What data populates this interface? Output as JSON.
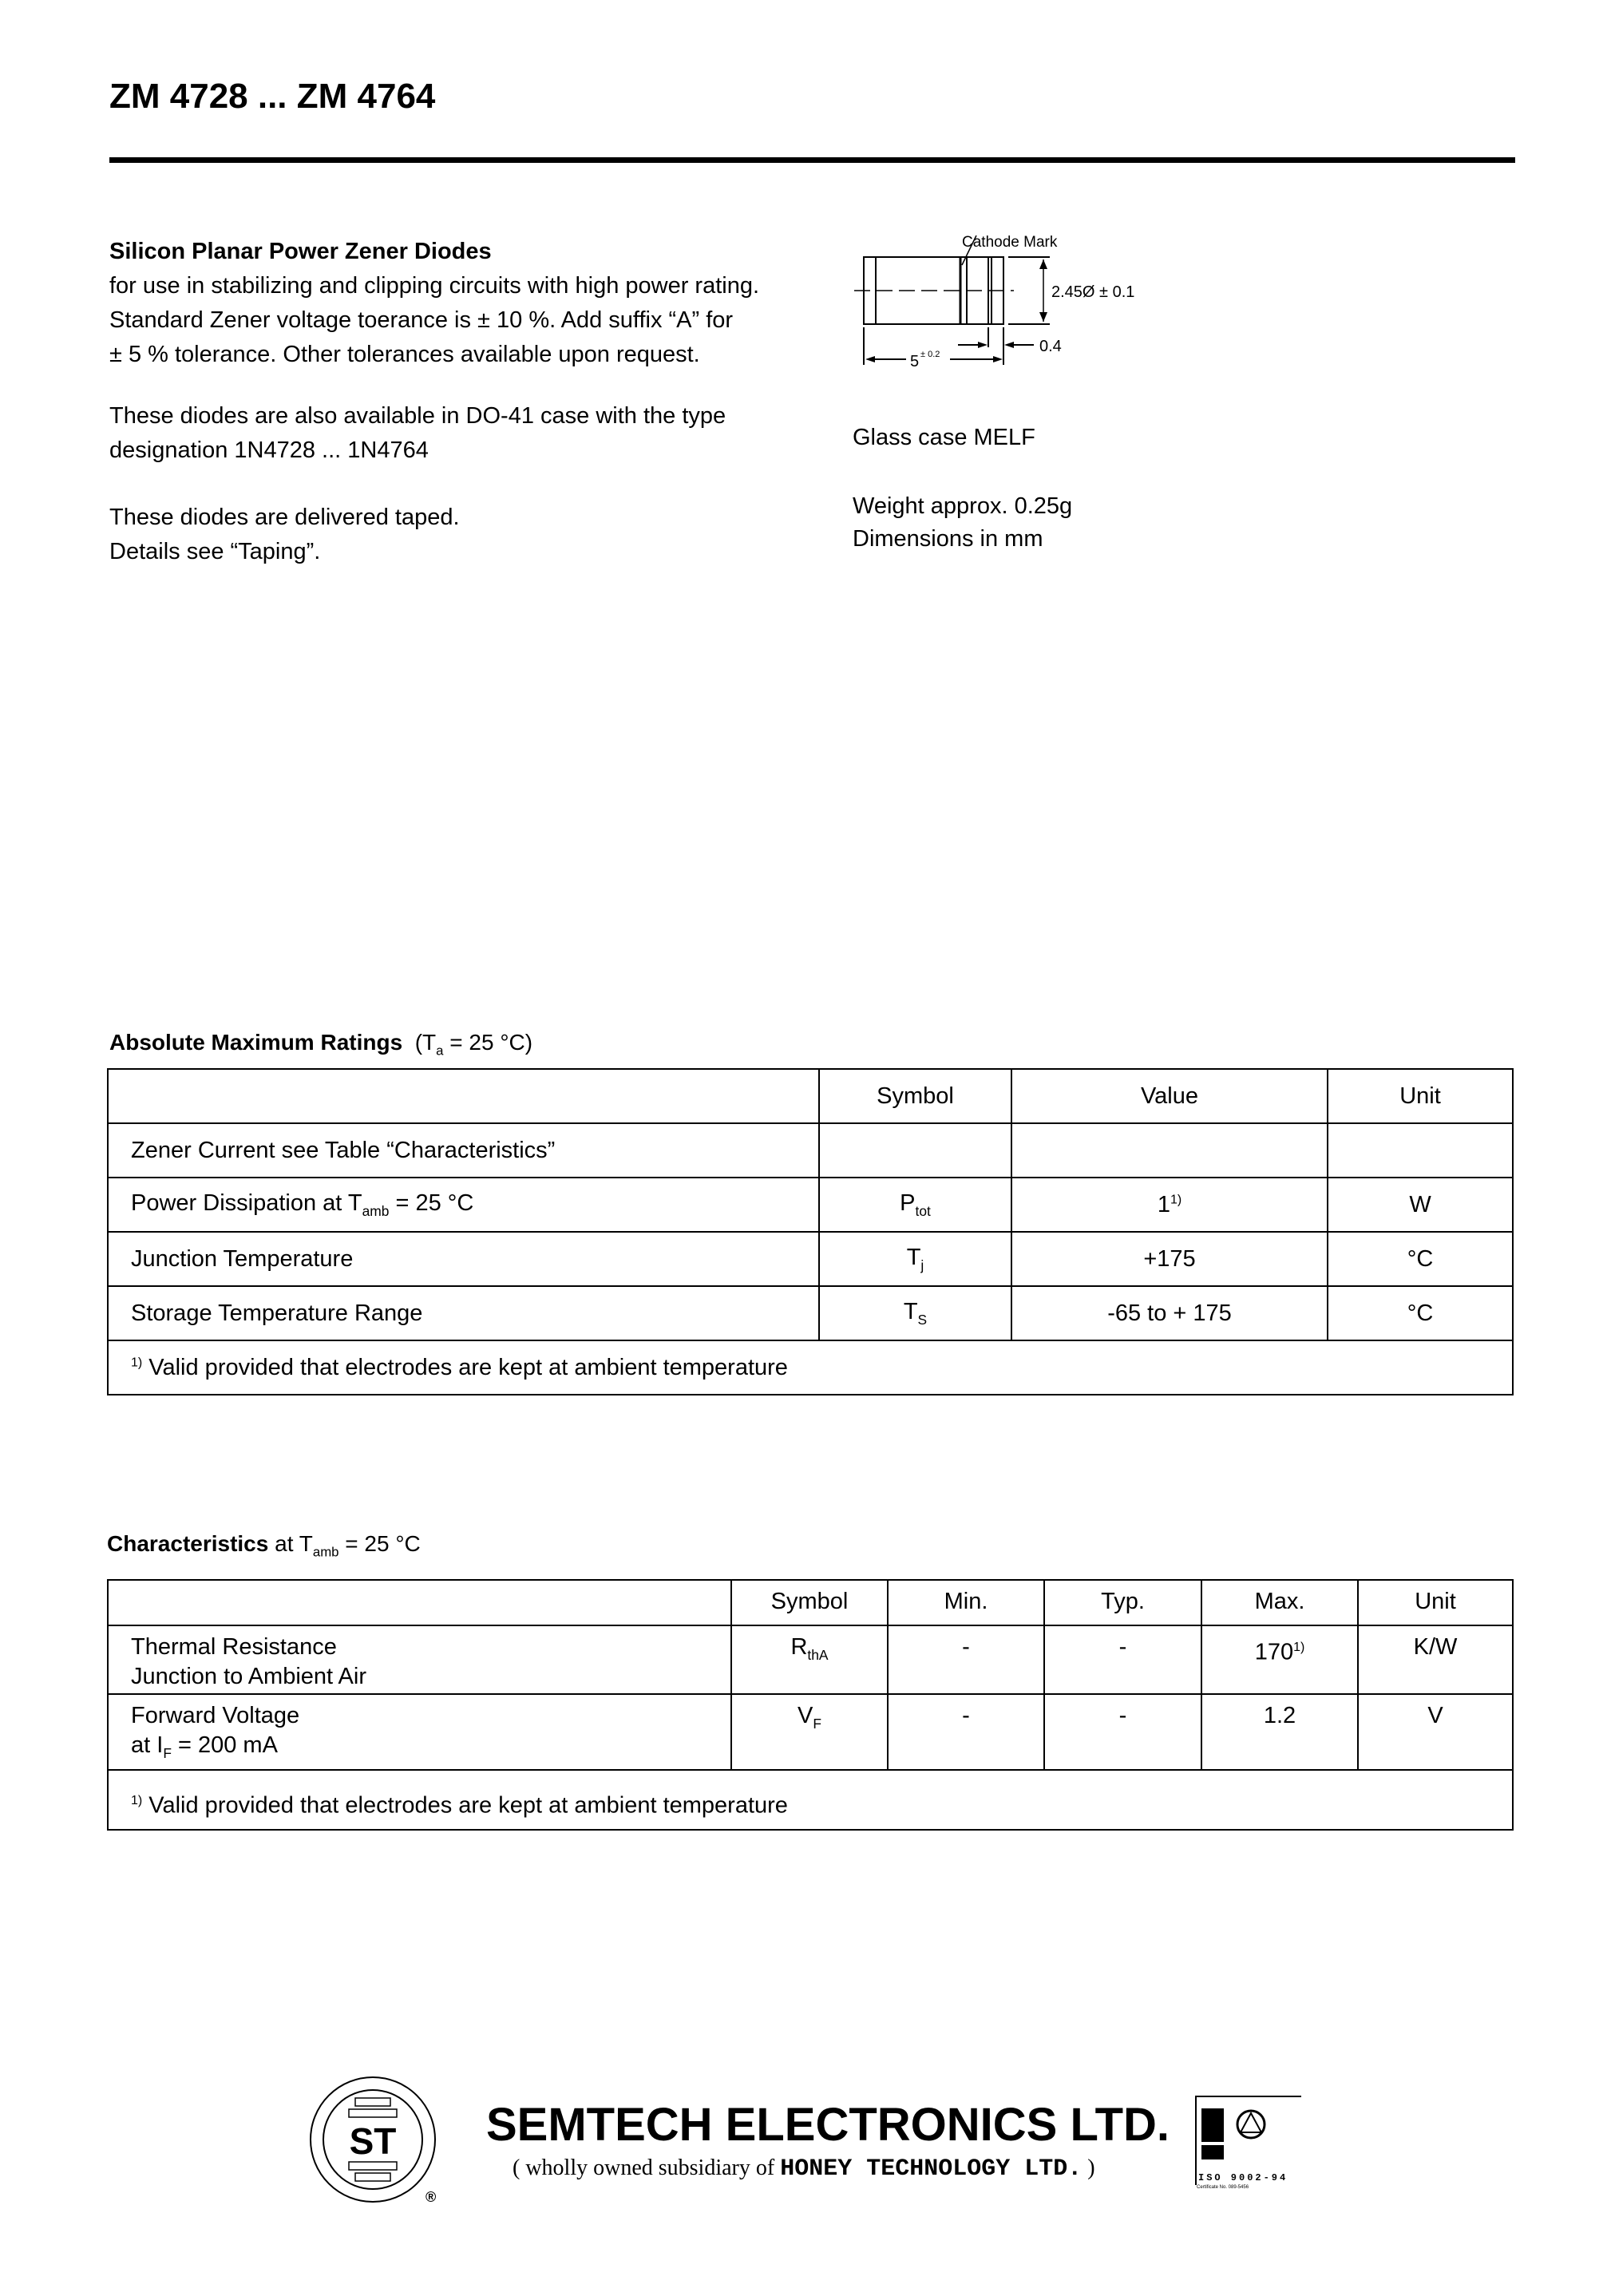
{
  "header": {
    "title": "ZM 4728 ... ZM 4764"
  },
  "intro": {
    "heading": "Silicon Planar Power Zener Diodes",
    "lines": [
      "for use in stabilizing and clipping circuits with high power rating.",
      "Standard Zener voltage toerance is ± 10 %. Add suffix “A” for",
      "± 5 % tolerance. Other tolerances available upon request."
    ],
    "para2": [
      "These diodes are also available in DO-41 case with the type",
      "designation 1N4728 ... 1N4764"
    ],
    "para3": [
      "These diodes are delivered taped.",
      "Details see “Taping”."
    ]
  },
  "diagram": {
    "cathode_label": "Cathode Mark",
    "diameter_label": "2.45Ø ± 0.1",
    "length_label": "5",
    "length_tol": "± 0.2",
    "band_label": "0.4"
  },
  "package": {
    "case": "Glass case MELF",
    "weight": "Weight approx. 0.25g",
    "dimensions": "Dimensions in mm"
  },
  "abs_max": {
    "heading": "Absolute Maximum Ratings",
    "cond_pre": "(T",
    "cond_sub": "a",
    "cond_post": " = 25 °C)",
    "headers": [
      "",
      "Symbol",
      "Value",
      "Unit"
    ],
    "rows": [
      {
        "param": "Zener Current see Table “Characteristics”",
        "param_sub": "",
        "param_post": "",
        "sym": "",
        "sym_sub": "",
        "value": "",
        "value_sup": "",
        "unit": ""
      },
      {
        "param": "Power Dissipation at T",
        "param_sub": "amb",
        "param_post": " = 25 °C",
        "sym": "P",
        "sym_sub": "tot",
        "value": "1",
        "value_sup": "1)",
        "unit": "W"
      },
      {
        "param": "Junction Temperature",
        "param_sub": "",
        "param_post": "",
        "sym": "T",
        "sym_sub": "j",
        "value": "+175",
        "value_sup": "",
        "unit": "°C"
      },
      {
        "param": "Storage Temperature Range",
        "param_sub": "",
        "param_post": "",
        "sym": "T",
        "sym_sub": "S",
        "value": "-65 to + 175",
        "value_sup": "",
        "unit": "°C"
      }
    ],
    "footnote_mark": "1)",
    "footnote": "Valid provided that electrodes are kept at ambient temperature"
  },
  "characteristics": {
    "heading": "Characteristics",
    "cond_pre": " at T",
    "cond_sub": "amb",
    "cond_post": " = 25 °C",
    "headers": [
      "",
      "Symbol",
      "Min.",
      "Typ.",
      "Max.",
      "Unit"
    ],
    "rows": [
      {
        "line1": "Thermal Resistance",
        "line2": "Junction to Ambient Air",
        "line2_sub": "",
        "line2_post": "",
        "sym": "R",
        "sym_sub": "thA",
        "min": "-",
        "typ": "-",
        "max": "170",
        "max_sup": "1)",
        "unit": "K/W"
      },
      {
        "line1": "Forward Voltage",
        "line2": "at I",
        "line2_sub": "F",
        "line2_post": " = 200 mA",
        "sym": "V",
        "sym_sub": "F",
        "min": "-",
        "typ": "-",
        "max": "1.2",
        "max_sup": "",
        "unit": "V"
      }
    ],
    "footnote_mark": "1)",
    "footnote": "Valid provided that electrodes are kept at ambient temperature"
  },
  "footer": {
    "company": "SEMTECH ELECTRONICS LTD.",
    "subsidiary_open": "( wholly owned subsidiary of ",
    "parent": "HONEY TECHNOLOGY LTD.",
    "subsidiary_close": " )",
    "logo_text": "ST",
    "registered": "®",
    "cert_iso": "ISO 9002-94",
    "cert_no": "Certificate No. 089-5456"
  }
}
